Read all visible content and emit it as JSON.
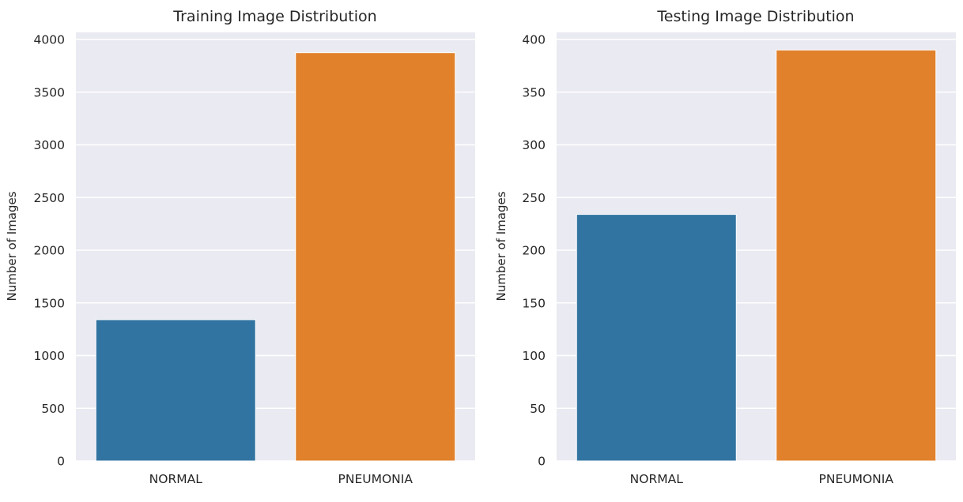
{
  "chart_data": [
    {
      "type": "bar",
      "title": "Training Image Distribution",
      "xlabel": "",
      "ylabel": "Number of Images",
      "categories": [
        "NORMAL",
        "PNEUMONIA"
      ],
      "values": [
        1341,
        3875
      ],
      "colors": [
        "#3274a1",
        "#e1812c"
      ],
      "ylim": [
        0,
        4000
      ],
      "yticks": [
        "0",
        "500",
        "1000",
        "1500",
        "2000",
        "2500",
        "3000",
        "3500",
        "4000"
      ],
      "grid": true,
      "background": "#eaeaf2"
    },
    {
      "type": "bar",
      "title": "Testing Image Distribution",
      "xlabel": "",
      "ylabel": "Number of Images",
      "categories": [
        "NORMAL",
        "PNEUMONIA"
      ],
      "values": [
        234,
        390
      ],
      "colors": [
        "#3274a1",
        "#e1812c"
      ],
      "ylim": [
        0,
        400
      ],
      "yticks": [
        "0",
        "50",
        "100",
        "150",
        "200",
        "250",
        "300",
        "350",
        "400"
      ],
      "grid": true,
      "background": "#eaeaf2"
    }
  ]
}
